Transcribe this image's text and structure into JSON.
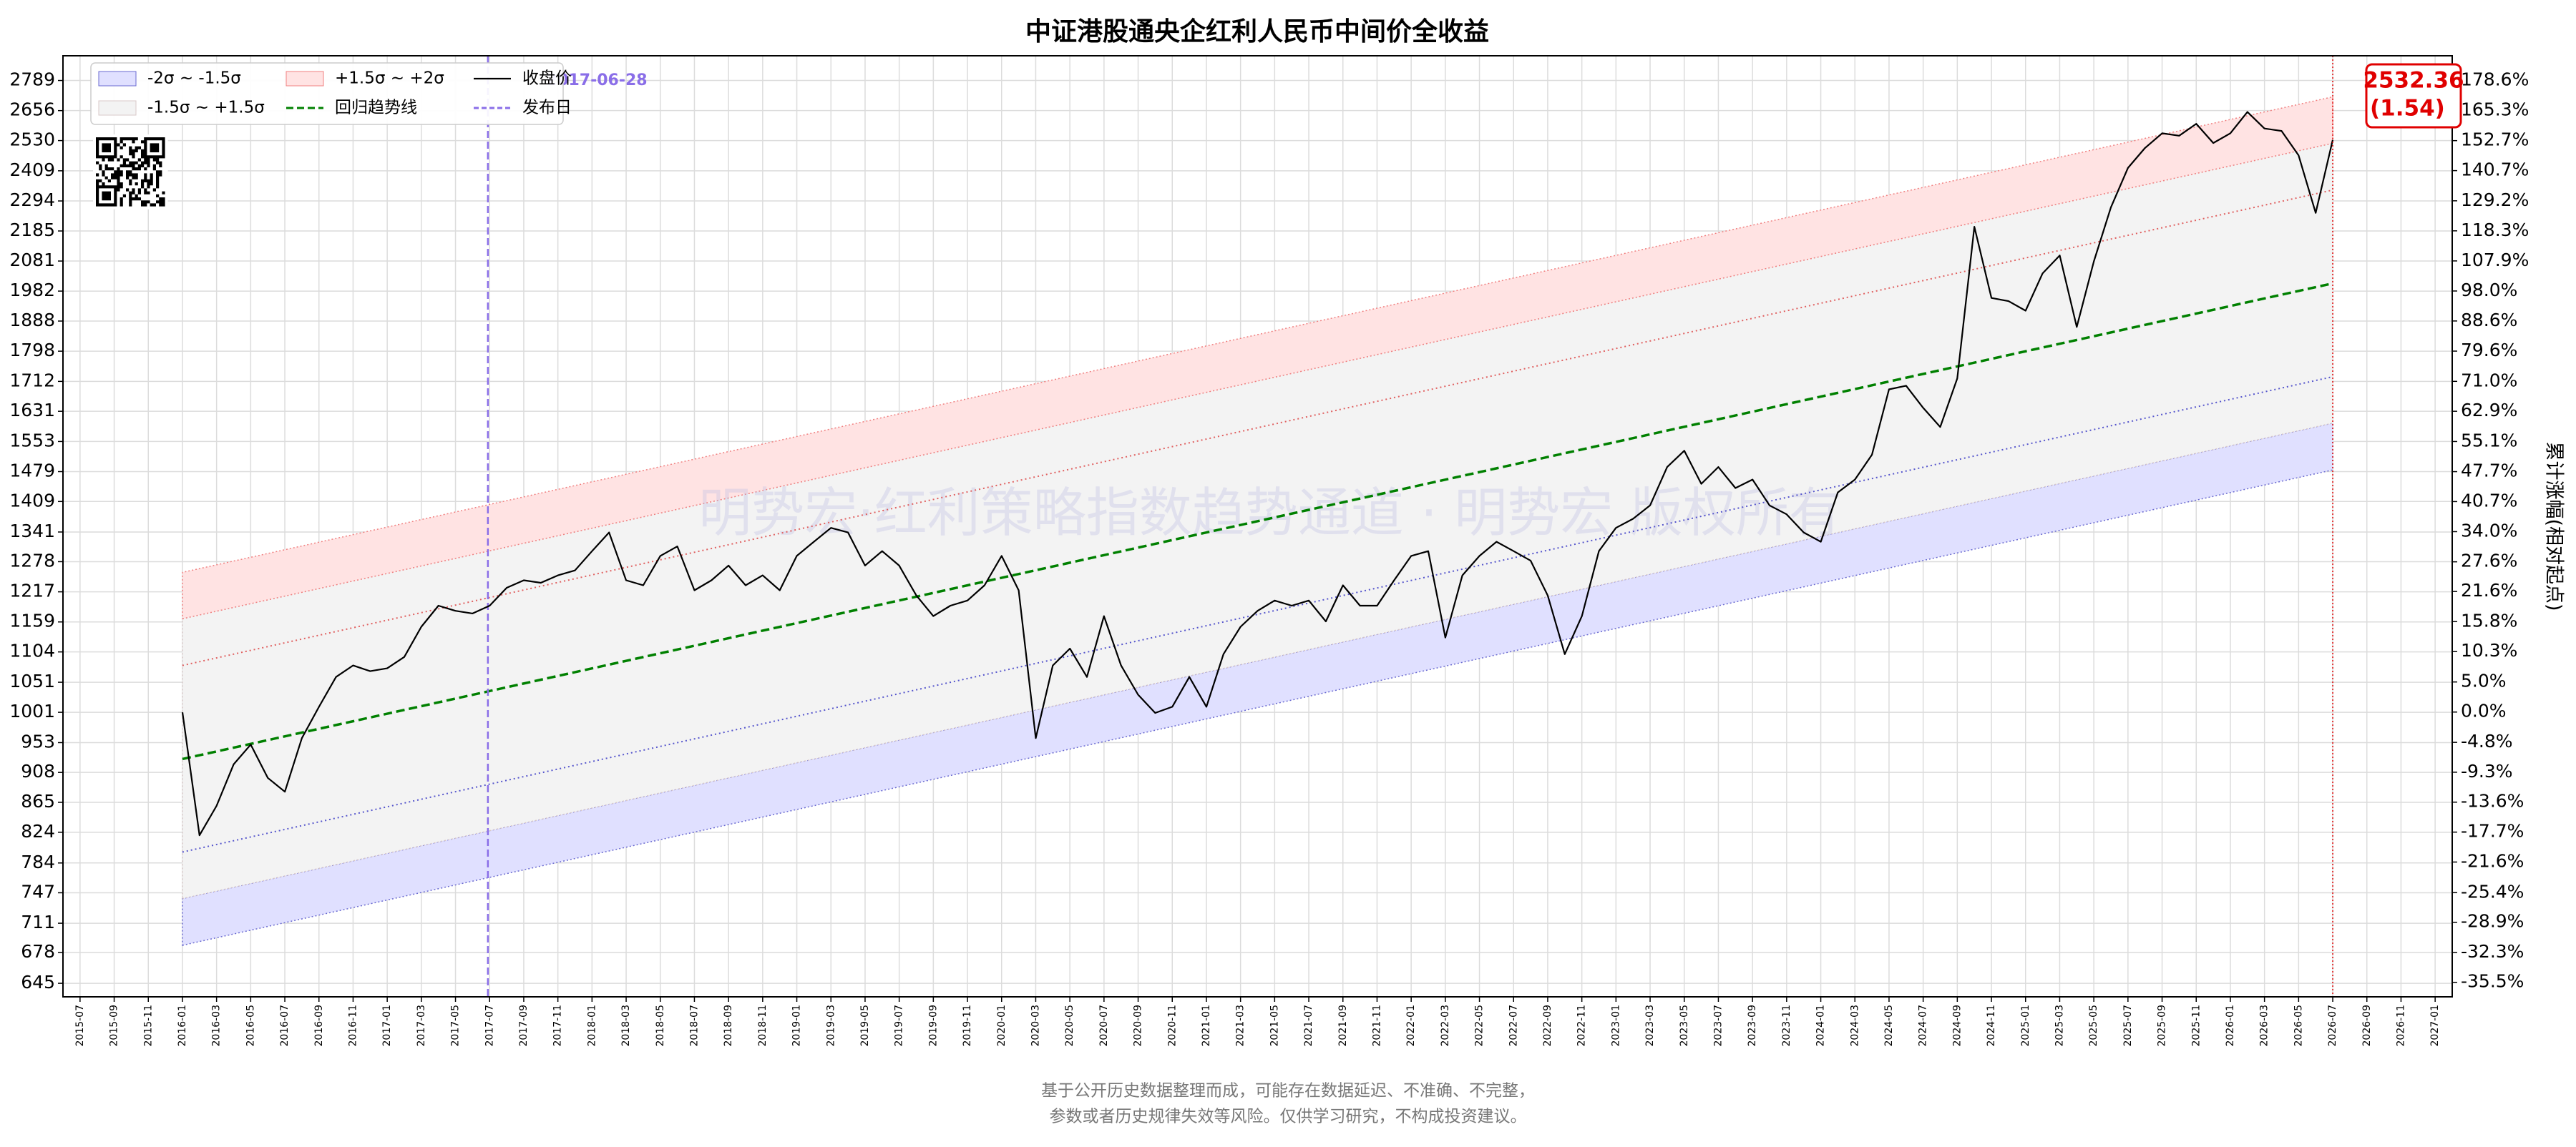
{
  "chart_data": {
    "type": "line",
    "title": "中证港股通央企红利人民币中间价全收益",
    "y2_label": "累计涨幅(相对起点)",
    "watermark": "明势宏·红利策略指数趋势通道 · 明势宏 版权所有",
    "footer": [
      "基于公开历史数据整理而成，可能存在数据延迟、不准确、不完整，",
      "参数或者历史规律失效等风险。仅供学习研究，不构成投资建议。"
    ],
    "yscale": "log",
    "grid": true,
    "legend": "upper left",
    "xlim": [
      "2015-06",
      "2027-02"
    ],
    "xticks": [
      "2015-07",
      "2015-09",
      "2015-11",
      "2016-01",
      "2016-03",
      "2016-05",
      "2016-07",
      "2016-09",
      "2016-11",
      "2017-01",
      "2017-03",
      "2017-05",
      "2017-07",
      "2017-09",
      "2017-11",
      "2018-01",
      "2018-03",
      "2018-05",
      "2018-07",
      "2018-09",
      "2018-11",
      "2019-01",
      "2019-03",
      "2019-05",
      "2019-07",
      "2019-09",
      "2019-11",
      "2020-01",
      "2020-03",
      "2020-05",
      "2020-07",
      "2020-09",
      "2020-11",
      "2021-01",
      "2021-03",
      "2021-05",
      "2021-07",
      "2021-09",
      "2021-11",
      "2022-01",
      "2022-03",
      "2022-05",
      "2022-07",
      "2022-09",
      "2022-11",
      "2023-01",
      "2023-03",
      "2023-05",
      "2023-07",
      "2023-09",
      "2023-11",
      "2024-01",
      "2024-03",
      "2024-05",
      "2024-07",
      "2024-09",
      "2024-11",
      "2025-01",
      "2025-03",
      "2025-05",
      "2025-07",
      "2025-09",
      "2025-11",
      "2026-01",
      "2026-03",
      "2026-05",
      "2026-07",
      "2026-09",
      "2026-11",
      "2027-01"
    ],
    "ylim": [
      631,
      2903
    ],
    "yticks": [
      645,
      678,
      711,
      747,
      784,
      824,
      865,
      908,
      953,
      1001,
      1051,
      1104,
      1159,
      1217,
      1278,
      1341,
      1409,
      1479,
      1553,
      1631,
      1712,
      1798,
      1888,
      1982,
      2081,
      2185,
      2294,
      2409,
      2530,
      2656,
      2789
    ],
    "y2lim": [
      -37.0,
      190.0
    ],
    "y2ticks": [
      {
        "value": -35.5,
        "label": "-35.5%"
      },
      {
        "value": -32.3,
        "label": "-32.3%"
      },
      {
        "value": -28.9,
        "label": "-28.9%"
      },
      {
        "value": -25.4,
        "label": "-25.4%"
      },
      {
        "value": -21.6,
        "label": "-21.6%"
      },
      {
        "value": -17.7,
        "label": "-17.7%"
      },
      {
        "value": -13.6,
        "label": "-13.6%"
      },
      {
        "value": -9.3,
        "label": "-9.3%"
      },
      {
        "value": -4.8,
        "label": "-4.8%"
      },
      {
        "value": 0.0,
        "label": "0.0%"
      },
      {
        "value": 5.0,
        "label": "5.0%"
      },
      {
        "value": 10.3,
        "label": "10.3%"
      },
      {
        "value": 15.8,
        "label": "15.8%"
      },
      {
        "value": 21.6,
        "label": "21.6%"
      },
      {
        "value": 27.6,
        "label": "27.6%"
      },
      {
        "value": 34.0,
        "label": "34.0%"
      },
      {
        "value": 40.7,
        "label": "40.7%"
      },
      {
        "value": 47.7,
        "label": "47.7%"
      },
      {
        "value": 55.1,
        "label": "55.1%"
      },
      {
        "value": 62.9,
        "label": "62.9%"
      },
      {
        "value": 71.0,
        "label": "71.0%"
      },
      {
        "value": 79.6,
        "label": "79.6%"
      },
      {
        "value": 88.6,
        "label": "88.6%"
      },
      {
        "value": 98.0,
        "label": "98.0%"
      },
      {
        "value": 107.9,
        "label": "107.9%"
      },
      {
        "value": 118.3,
        "label": "118.3%"
      },
      {
        "value": 129.2,
        "label": "129.2%"
      },
      {
        "value": 140.7,
        "label": "140.7%"
      },
      {
        "value": 152.7,
        "label": "152.7%"
      },
      {
        "value": 165.3,
        "label": "165.3%"
      },
      {
        "value": 178.6,
        "label": "178.6%"
      }
    ],
    "bands": [
      {
        "name": "-2σ ~ -1.5σ",
        "color": "#e0e0ff",
        "edge": "#6a6ad0",
        "lower": [
          686,
          1483
        ],
        "upper": [
          740,
          1600
        ]
      },
      {
        "name": "-1.5σ ~ +1.5σ",
        "color": "#f3f3f3",
        "edge": "#d8c8c8",
        "lower": [
          740,
          1600
        ],
        "upper": [
          1165,
          2519
        ]
      },
      {
        "name": "+1.5σ ~ +2σ",
        "color": "#ffe3e3",
        "edge": "#f08080",
        "lower": [
          1165,
          2519
        ],
        "upper": [
          1256,
          2716
        ]
      }
    ],
    "trend": {
      "name": "回归趋势线",
      "color": "#008000",
      "x": [
        "2016-01",
        "2026-07"
      ],
      "values": [
        928,
        2007
      ]
    },
    "sigma_lines": [
      {
        "color": "#e06060",
        "values": [
          1080,
          2335
        ]
      },
      {
        "color": "#5555cc",
        "values": [
          798,
          1725
        ]
      }
    ],
    "x": [
      "2016-01",
      "2016-02",
      "2016-03",
      "2016-04",
      "2016-05",
      "2016-06",
      "2016-07",
      "2016-08",
      "2016-09",
      "2016-10",
      "2016-11",
      "2016-12",
      "2017-01",
      "2017-02",
      "2017-03",
      "2017-04",
      "2017-05",
      "2017-06",
      "2017-07",
      "2017-08",
      "2017-09",
      "2017-10",
      "2017-11",
      "2017-12",
      "2018-01",
      "2018-02",
      "2018-03",
      "2018-04",
      "2018-05",
      "2018-06",
      "2018-07",
      "2018-08",
      "2018-09",
      "2018-10",
      "2018-11",
      "2018-12",
      "2019-01",
      "2019-02",
      "2019-03",
      "2019-04",
      "2019-05",
      "2019-06",
      "2019-07",
      "2019-08",
      "2019-09",
      "2019-10",
      "2019-11",
      "2019-12",
      "2020-01",
      "2020-02",
      "2020-03",
      "2020-04",
      "2020-05",
      "2020-06",
      "2020-07",
      "2020-08",
      "2020-09",
      "2020-10",
      "2020-11",
      "2020-12",
      "2021-01",
      "2021-02",
      "2021-03",
      "2021-04",
      "2021-05",
      "2021-06",
      "2021-07",
      "2021-08",
      "2021-09",
      "2021-10",
      "2021-11",
      "2021-12",
      "2022-01",
      "2022-02",
      "2022-03",
      "2022-04",
      "2022-05",
      "2022-06",
      "2022-07",
      "2022-08",
      "2022-09",
      "2022-10",
      "2022-11",
      "2022-12",
      "2023-01",
      "2023-02",
      "2023-03",
      "2023-04",
      "2023-05",
      "2023-06",
      "2023-07",
      "2023-08",
      "2023-09",
      "2023-10",
      "2023-11",
      "2023-12",
      "2024-01",
      "2024-02",
      "2024-03",
      "2024-04",
      "2024-05",
      "2024-06",
      "2024-07",
      "2024-08",
      "2024-09",
      "2024-10",
      "2024-11",
      "2024-12",
      "2025-01",
      "2025-02",
      "2025-03",
      "2025-04",
      "2025-05",
      "2025-06",
      "2025-07",
      "2025-08",
      "2025-09",
      "2025-10",
      "2025-11",
      "2025-12",
      "2026-01",
      "2026-02",
      "2026-03",
      "2026-04",
      "2026-05",
      "2026-06",
      "2026-07"
    ],
    "series": [
      {
        "name": "收盘价",
        "color": "#000000",
        "values": [
          1001,
          820,
          860,
          920,
          950,
          900,
          880,
          960,
          1010,
          1060,
          1080,
          1070,
          1075,
          1095,
          1150,
          1190,
          1180,
          1175,
          1190,
          1225,
          1240,
          1235,
          1250,
          1260,
          1300,
          1340,
          1240,
          1230,
          1290,
          1310,
          1220,
          1240,
          1270,
          1230,
          1250,
          1220,
          1290,
          1320,
          1350,
          1340,
          1270,
          1300,
          1270,
          1210,
          1170,
          1190,
          1200,
          1230,
          1290,
          1220,
          960,
          1080,
          1110,
          1060,
          1170,
          1080,
          1030,
          1000,
          1010,
          1060,
          1010,
          1100,
          1150,
          1180,
          1200,
          1190,
          1200,
          1160,
          1230,
          1190,
          1190,
          1240,
          1290,
          1300,
          1130,
          1250,
          1290,
          1320,
          1300,
          1280,
          1210,
          1100,
          1170,
          1300,
          1350,
          1370,
          1400,
          1490,
          1530,
          1450,
          1490,
          1440,
          1460,
          1400,
          1380,
          1340,
          1320,
          1430,
          1460,
          1520,
          1690,
          1700,
          1640,
          1590,
          1720,
          2200,
          1960,
          1950,
          1920,
          2040,
          2100,
          1870,
          2080,
          2270,
          2420,
          2500,
          2560,
          2550,
          2600,
          2520,
          2560,
          2650,
          2580,
          2570,
          2470,
          2250,
          2532.36
        ]
      }
    ],
    "release": {
      "name": "发布日",
      "color": "#8a6ee8",
      "date": "2017-06-28"
    },
    "last_sigma": {
      "value": 1.54,
      "label": "(1.54)"
    },
    "last_color": "#e00000"
  }
}
